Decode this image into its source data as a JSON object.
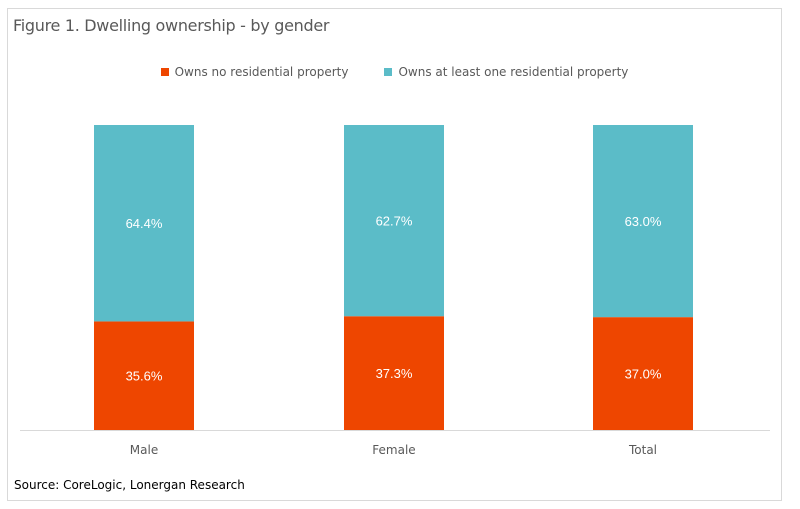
{
  "chart_data": {
    "type": "bar",
    "stacked": true,
    "title": "Figure 1. Dwelling ownership - by gender",
    "categories": [
      "Male",
      "Female",
      "Total"
    ],
    "series": [
      {
        "name": "Owns no residential property",
        "values": [
          35.6,
          37.3,
          37.0
        ],
        "labels": [
          "35.6%",
          "37.3%",
          "37.0%"
        ],
        "color": "#ee4600"
      },
      {
        "name": "Owns at least one residential property",
        "values": [
          64.4,
          62.7,
          63.0
        ],
        "labels": [
          "64.4%",
          "62.7%",
          "63.0%"
        ],
        "color": "#5bbcc8"
      }
    ],
    "ylim": [
      0,
      100
    ],
    "grid": false,
    "legend_position": "top",
    "source": "Source: CoreLogic, Lonergan Research"
  }
}
